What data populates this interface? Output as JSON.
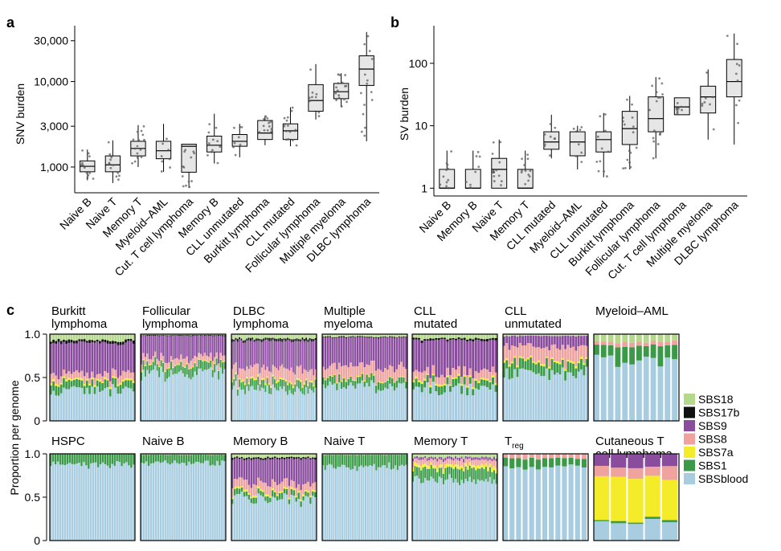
{
  "colors": {
    "highlight": "#cc1f8f",
    "box_fill": "#e6e6e6",
    "SBS18": "#b5d98b",
    "SBS17b": "#111111",
    "SBS9": "#8a4c9d",
    "SBS8": "#f0a39e",
    "SBS7a": "#f4ec29",
    "SBS1": "#3a9a48",
    "SBSblood": "#a8cde0"
  },
  "chart_data": [
    {
      "panel": "a",
      "type": "box",
      "ylabel": "SNV burden",
      "log_scale": true,
      "ylim": [
        500,
        45000
      ],
      "yticks": [
        1000,
        3000,
        10000,
        30000
      ],
      "ytick_labels": [
        "1,000",
        "3,000",
        "10,000",
        "30,000"
      ],
      "categories": [
        "Naive B",
        "Naive T",
        "Memory T",
        "Myeloid–AML",
        "Cut. T cell lymphoma",
        "Memory B",
        "CLL unmutated",
        "Burkitt lymphoma",
        "CLL mutated",
        "Follicular lymphoma",
        "Multiple myeloma",
        "DLBC lymphoma"
      ],
      "highlighted": [
        true,
        true,
        true,
        false,
        false,
        true,
        false,
        false,
        false,
        false,
        false,
        false
      ],
      "boxes": [
        {
          "lo": 700,
          "q1": 880,
          "med": 1020,
          "q3": 1180,
          "hi": 1600
        },
        {
          "lo": 650,
          "q1": 880,
          "med": 1060,
          "q3": 1350,
          "hi": 2050
        },
        {
          "lo": 1000,
          "q1": 1350,
          "med": 1650,
          "q3": 2000,
          "hi": 3100
        },
        {
          "lo": 880,
          "q1": 1250,
          "med": 1550,
          "q3": 2000,
          "hi": 3200
        },
        {
          "lo": 570,
          "q1": 870,
          "med": 1750,
          "q3": 1850,
          "hi": 1850
        },
        {
          "lo": 1100,
          "q1": 1500,
          "med": 1800,
          "q3": 2300,
          "hi": 4200
        },
        {
          "lo": 1300,
          "q1": 1750,
          "med": 2000,
          "q3": 2400,
          "hi": 3200
        },
        {
          "lo": 1800,
          "q1": 2100,
          "med": 2500,
          "q3": 3500,
          "hi": 4000
        },
        {
          "lo": 1750,
          "q1": 2100,
          "med": 2650,
          "q3": 3200,
          "hi": 5000
        },
        {
          "lo": 3600,
          "q1": 4500,
          "med": 6000,
          "q3": 9200,
          "hi": 16000
        },
        {
          "lo": 5000,
          "q1": 6300,
          "med": 7600,
          "q3": 9500,
          "hi": 12500
        },
        {
          "lo": 2000,
          "q1": 9000,
          "med": 14000,
          "q3": 20000,
          "hi": 38000
        }
      ]
    },
    {
      "panel": "b",
      "type": "box",
      "ylabel": "SV burden",
      "log_scale": true,
      "ylim": [
        0.75,
        400
      ],
      "yticks": [
        1,
        10,
        100
      ],
      "ytick_labels": [
        "1",
        "10",
        "100"
      ],
      "categories": [
        "Naive B",
        "Memory B",
        "Naive T",
        "Memory T",
        "CLL mutated",
        "Myeloid–AML",
        "CLL unmutated",
        "Burkitt lymphoma",
        "Follicular lymphoma",
        "Cut. T cell lymphoma",
        "Multiple myeloma",
        "DLBC lymphoma"
      ],
      "highlighted": [
        true,
        true,
        true,
        true,
        false,
        false,
        false,
        false,
        false,
        false,
        false,
        false
      ],
      "boxes": [
        {
          "lo": 1,
          "q1": 1,
          "med": 1,
          "q3": 2,
          "hi": 4
        },
        {
          "lo": 1,
          "q1": 1,
          "med": 1,
          "q3": 2,
          "hi": 4
        },
        {
          "lo": 1,
          "q1": 1,
          "med": 2,
          "q3": 3,
          "hi": 6
        },
        {
          "lo": 1,
          "q1": 1,
          "med": 1,
          "q3": 2,
          "hi": 4
        },
        {
          "lo": 3,
          "q1": 4.2,
          "med": 5.5,
          "q3": 8,
          "hi": 15
        },
        {
          "lo": 2,
          "q1": 3.3,
          "med": 5.5,
          "q3": 8,
          "hi": 10
        },
        {
          "lo": 1.5,
          "q1": 3.8,
          "med": 6,
          "q3": 8,
          "hi": 16
        },
        {
          "lo": 2,
          "q1": 5,
          "med": 9,
          "q3": 17,
          "hi": 30
        },
        {
          "lo": 3,
          "q1": 8,
          "med": 13,
          "q3": 29,
          "hi": 60
        },
        {
          "lo": 15,
          "q1": 15,
          "med": 20,
          "q3": 28,
          "hi": 28
        },
        {
          "lo": 6,
          "q1": 16,
          "med": 29,
          "q3": 43,
          "hi": 80
        },
        {
          "lo": 5,
          "q1": 29,
          "med": 51,
          "q3": 115,
          "hi": 300
        }
      ]
    },
    {
      "panel": "c",
      "type": "stacked-bar",
      "ylabel": "Proportion per genome",
      "ylim": [
        0,
        1
      ],
      "yticks": [
        0,
        0.5,
        1
      ],
      "ytick_labels": [
        "0",
        "0.5",
        "1.0"
      ],
      "legend": [
        "SBS18",
        "SBS17b",
        "SBS9",
        "SBS8",
        "SBS7a",
        "SBS1",
        "SBSblood"
      ],
      "legend_position": "right",
      "panels": [
        {
          "title1": "Burkitt",
          "title2": "lymphoma",
          "pink": false,
          "row": 0,
          "n": 33,
          "composition": {
            "SBSblood": 0.35,
            "SBS1": 0.09,
            "SBS7a": 0.02,
            "SBS8": 0.08,
            "SBS9": 0.36,
            "SBS17b": 0.03,
            "SBS18": 0.07
          }
        },
        {
          "title1": "Follicular",
          "title2": "lymphoma",
          "pink": false,
          "row": 0,
          "n": 43,
          "composition": {
            "SBSblood": 0.55,
            "SBS1": 0.1,
            "SBS7a": 0.01,
            "SBS8": 0.07,
            "SBS9": 0.25,
            "SBS17b": 0.01,
            "SBS18": 0.01
          }
        },
        {
          "title1": "DLBC",
          "title2": "lymphoma",
          "pink": false,
          "row": 0,
          "n": 46,
          "composition": {
            "SBSblood": 0.36,
            "SBS1": 0.09,
            "SBS7a": 0.02,
            "SBS8": 0.13,
            "SBS9": 0.32,
            "SBS17b": 0.03,
            "SBS18": 0.05
          }
        },
        {
          "title1": "Multiple",
          "title2": "myeloma",
          "pink": false,
          "row": 0,
          "n": 37,
          "composition": {
            "SBSblood": 0.4,
            "SBS1": 0.08,
            "SBS7a": 0.01,
            "SBS8": 0.14,
            "SBS9": 0.33,
            "SBS17b": 0.01,
            "SBS18": 0.03
          }
        },
        {
          "title1": "CLL",
          "title2": "mutated",
          "pink": false,
          "row": 0,
          "n": 30,
          "composition": {
            "SBSblood": 0.36,
            "SBS1": 0.08,
            "SBS7a": 0.02,
            "SBS8": 0.1,
            "SBS9": 0.37,
            "SBS17b": 0.02,
            "SBS18": 0.05
          }
        },
        {
          "title1": "CLL",
          "title2": "unmutated",
          "pink": false,
          "row": 0,
          "n": 32,
          "composition": {
            "SBSblood": 0.55,
            "SBS1": 0.12,
            "SBS7a": 0.02,
            "SBS8": 0.17,
            "SBS9": 0.12,
            "SBS17b": 0.0,
            "SBS18": 0.02
          }
        },
        {
          "title1": "Myeloid–AML",
          "title2": "",
          "pink": false,
          "row": 0,
          "n": 12,
          "composition": {
            "SBSblood": 0.7,
            "SBS1": 0.16,
            "SBS7a": 0.0,
            "SBS8": 0.05,
            "SBS9": 0.0,
            "SBS17b": 0.0,
            "SBS18": 0.09
          }
        },
        {
          "title1": "HSPC",
          "title2": "",
          "pink": true,
          "row": 1,
          "n": 36,
          "composition": {
            "SBSblood": 0.88,
            "SBS1": 0.12,
            "SBS7a": 0.0,
            "SBS8": 0.0,
            "SBS9": 0.0,
            "SBS17b": 0.0,
            "SBS18": 0.0
          }
        },
        {
          "title1": "Naive B",
          "title2": "",
          "pink": true,
          "row": 1,
          "n": 36,
          "composition": {
            "SBSblood": 0.9,
            "SBS1": 0.09,
            "SBS7a": 0.0,
            "SBS8": 0.01,
            "SBS9": 0.0,
            "SBS17b": 0.0,
            "SBS18": 0.0
          }
        },
        {
          "title1": "Memory B",
          "title2": "",
          "pink": true,
          "row": 1,
          "n": 36,
          "composition": {
            "SBSblood": 0.48,
            "SBS1": 0.06,
            "SBS7a": 0.02,
            "SBS8": 0.1,
            "SBS9": 0.28,
            "SBS17b": 0.02,
            "SBS18": 0.04
          }
        },
        {
          "title1": "Naive T",
          "title2": "",
          "pink": true,
          "row": 1,
          "n": 40,
          "composition": {
            "SBSblood": 0.86,
            "SBS1": 0.13,
            "SBS7a": 0.0,
            "SBS8": 0.01,
            "SBS9": 0.0,
            "SBS17b": 0.0,
            "SBS18": 0.0
          }
        },
        {
          "title1": "Memory T",
          "title2": "",
          "pink": true,
          "row": 1,
          "n": 42,
          "composition": {
            "SBSblood": 0.7,
            "SBS1": 0.13,
            "SBS7a": 0.04,
            "SBS8": 0.06,
            "SBS9": 0.03,
            "SBS17b": 0.0,
            "SBS18": 0.04
          }
        },
        {
          "title1": "T",
          "title1_sub": "reg",
          "title2": "",
          "pink": true,
          "row": 1,
          "n": 13,
          "composition": {
            "SBSblood": 0.86,
            "SBS1": 0.09,
            "SBS7a": 0.0,
            "SBS8": 0.05,
            "SBS9": 0.0,
            "SBS17b": 0.0,
            "SBS18": 0.0
          }
        },
        {
          "title1": "Cutaneous T",
          "title2": "cell lymphoma",
          "pink": false,
          "row": 1,
          "n": 5,
          "composition": {
            "SBSblood": 0.22,
            "SBS1": 0.02,
            "SBS7a": 0.48,
            "SBS8": 0.12,
            "SBS9": 0.16,
            "SBS17b": 0.0,
            "SBS18": 0.0
          }
        }
      ]
    }
  ],
  "panel_letters": {
    "a": "a",
    "b": "b",
    "c": "c"
  }
}
